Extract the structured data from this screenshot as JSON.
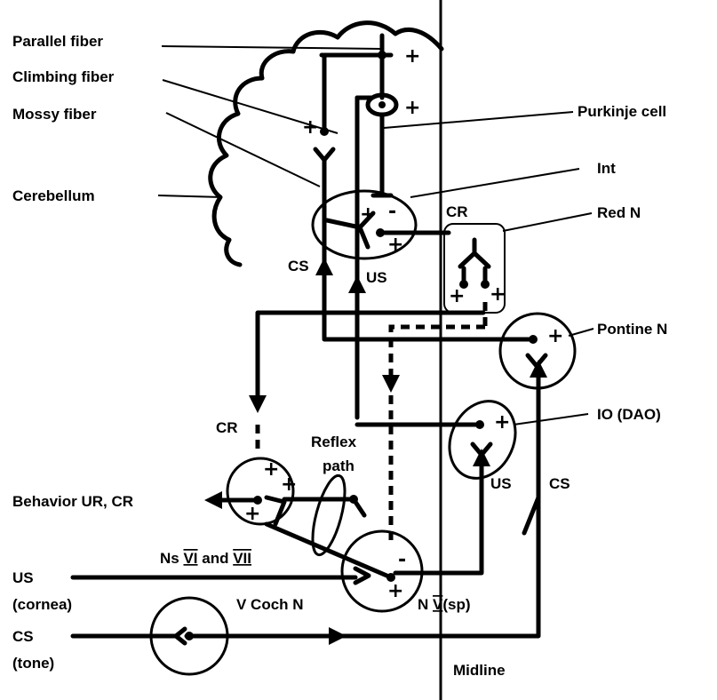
{
  "labels": {
    "parallel_fiber": "Parallel fiber",
    "climbing_fiber": "Climbing fiber",
    "mossy_fiber": "Mossy fiber",
    "cerebellum": "Cerebellum",
    "purkinje_cell": "Purkinje cell",
    "int": "Int",
    "red_n": "Red N",
    "cr_red": "CR",
    "cs_upper": "CS",
    "us_upper": "US",
    "pontine_n": "Pontine N",
    "io_dao": "IO (DAO)",
    "cr_mid": "CR",
    "reflex": "Reflex",
    "path": "path",
    "behavior": "Behavior UR, CR",
    "ns_prefix": "Ns ",
    "ns_vi": "VI",
    "ns_and": " and ",
    "ns_vii": "VII",
    "us_input": "US",
    "cornea": "(cornea)",
    "v_coch_n": "V Coch N",
    "n_prefix": "N ",
    "n_v": "V",
    "n_suffix": "(sp)",
    "cs_input": "CS",
    "tone": "(tone)",
    "us_right": "US",
    "cs_right": "CS",
    "midline": "Midline"
  },
  "signs": {
    "plus": "+",
    "minus": "-"
  }
}
